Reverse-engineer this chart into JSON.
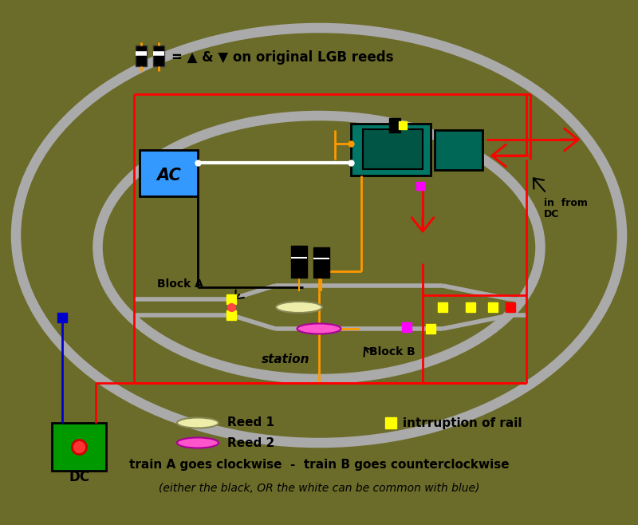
{
  "bg_color": "#6b6b2a",
  "track_color": "#aaaaaa",
  "red_wire": "#ff0000",
  "black_wire": "#000000",
  "white_wire": "#ffffff",
  "orange_wire": "#ff9900",
  "blue_wire": "#0000cc",
  "teal_color": "#006655",
  "blue_box_color": "#3399ff",
  "green_box_color": "#009900",
  "yellow_color": "#ffff00",
  "magenta_color": "#ff00ff",
  "reed1_color": "#eeeeaa",
  "reed2_color": "#ff55cc",
  "title_text": "= ▲ & ▼ on original LGB reeds",
  "text_in_from": "in  from",
  "text_dc_right": "DC",
  "text_block_a": "Block A",
  "text_block_b": "Block B",
  "text_station": "station",
  "text_reed1": "Reed 1",
  "text_reed2": "Reed 2",
  "text_intrr": "intrruption of rail",
  "text_train": "train A goes clockwise  -  train B goes counterclockwise",
  "text_either": "(either the black, OR the white can be common with blue)",
  "text_ac": "AC",
  "text_dc": "DC"
}
